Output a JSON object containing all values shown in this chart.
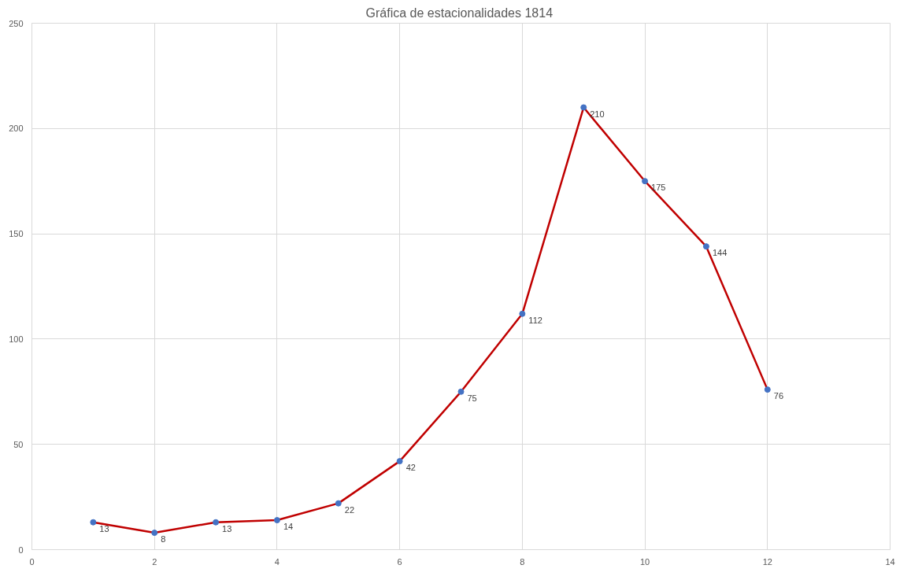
{
  "chart_data": {
    "type": "line",
    "title": "Gráfica de  estacionalidades 1814",
    "x": [
      1,
      2,
      3,
      4,
      5,
      6,
      7,
      8,
      9,
      10,
      11,
      12
    ],
    "series": [
      {
        "color": "#c00000",
        "colors": [
          "#4472c4",
          "#4472c4",
          "#4472c4",
          "#4472c4",
          "#4472c4",
          "#4472c4",
          "#4472c4",
          "#4472c4",
          "#4472c4",
          "#4472c4",
          "#4472c4",
          "#4472c4"
        ],
        "values": [
          13,
          8,
          13,
          14,
          22,
          42,
          75,
          112,
          210,
          175,
          144,
          76
        ]
      }
    ],
    "xlim": [
      0,
      14
    ],
    "xticks": [
      0,
      2,
      4,
      6,
      8,
      10,
      12,
      14
    ],
    "ylim": [
      0,
      250
    ],
    "yticks": [
      0,
      50,
      100,
      150,
      200,
      250
    ],
    "grid": true,
    "marker": "circle",
    "line_style": "solid",
    "data_labels": true
  }
}
